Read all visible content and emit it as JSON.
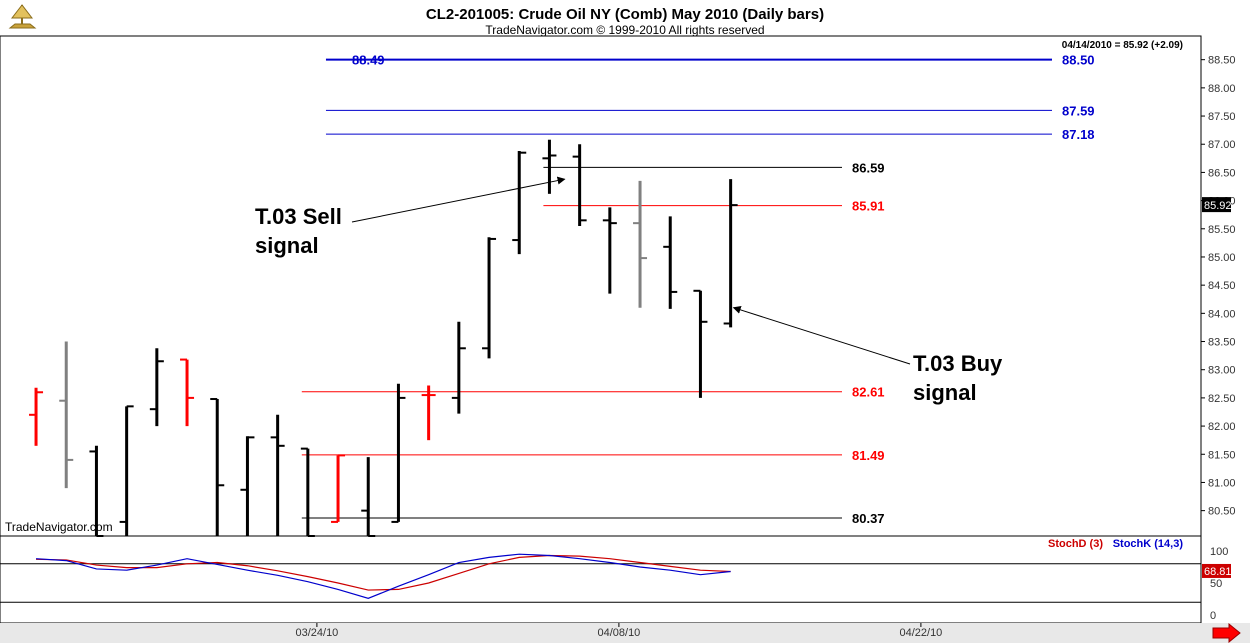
{
  "header": {
    "title": "CL2-201005:  Crude Oil NY (Comb) May 2010  (Daily bars)",
    "subtitle": "TradeNavigator.com © 1999-2010 All rights reserved",
    "last_price_note": "04/14/2010 = 85.92 (+2.09)",
    "watermark": "TradeNavigator.com"
  },
  "colors": {
    "bar_black": "#000000",
    "bar_red": "#ff0000",
    "bar_gray": "#808080",
    "level_blue": "#0000cc",
    "level_red": "#ff0000",
    "level_black": "#000000",
    "stoch_d": "#cc0000",
    "stoch_k": "#0000cc",
    "axis_text": "#333333"
  },
  "chart_data": {
    "type": "ohlc",
    "y_axis": {
      "ticks": [
        "80.50",
        "81.00",
        "81.50",
        "82.00",
        "82.50",
        "83.00",
        "83.50",
        "84.00",
        "84.50",
        "85.00",
        "85.50",
        "86.00",
        "86.50",
        "87.00",
        "87.50",
        "88.00",
        "88.50"
      ],
      "ylim": [
        80.05,
        88.92
      ],
      "last_price_label": "85.92"
    },
    "x_axis": {
      "date_labels": [
        {
          "text": "03/24/10",
          "index": 9.5
        },
        {
          "text": "04/08/10",
          "index": 19.5
        },
        {
          "text": "04/22/10",
          "index": 29.5
        }
      ]
    },
    "bars": [
      {
        "i": 0.2,
        "o": 82.2,
        "h": 82.68,
        "l": 81.65,
        "c": 82.6,
        "color": "red"
      },
      {
        "i": 1.2,
        "o": 82.45,
        "h": 83.5,
        "l": 80.9,
        "c": 81.4,
        "color": "gray"
      },
      {
        "i": 2.2,
        "o": 81.55,
        "h": 81.65,
        "l": 80.0,
        "c": 80.0,
        "color": "black"
      },
      {
        "i": 3.2,
        "o": 80.3,
        "h": 82.35,
        "l": 80.0,
        "c": 82.35,
        "color": "black"
      },
      {
        "i": 4.2,
        "o": 82.3,
        "h": 83.38,
        "l": 82.0,
        "c": 83.15,
        "color": "black"
      },
      {
        "i": 5.2,
        "o": 83.18,
        "h": 83.18,
        "l": 82.0,
        "c": 82.5,
        "color": "red"
      },
      {
        "i": 6.2,
        "o": 82.48,
        "h": 82.48,
        "l": 80.0,
        "c": 80.95,
        "color": "black"
      },
      {
        "i": 7.2,
        "o": 80.87,
        "h": 81.82,
        "l": 80.0,
        "c": 81.8,
        "color": "black"
      },
      {
        "i": 8.2,
        "o": 81.8,
        "h": 82.2,
        "l": 80.0,
        "c": 81.65,
        "color": "black"
      },
      {
        "i": 9.2,
        "o": 81.6,
        "h": 81.6,
        "l": 80.0,
        "c": 80.0,
        "color": "black"
      },
      {
        "i": 10.2,
        "o": 80.3,
        "h": 81.48,
        "l": 80.3,
        "c": 81.48,
        "color": "red"
      },
      {
        "i": 11.2,
        "o": 80.5,
        "h": 81.45,
        "l": 80.05,
        "c": 80.05,
        "color": "black"
      },
      {
        "i": 12.2,
        "o": 80.3,
        "h": 82.75,
        "l": 80.3,
        "c": 82.5,
        "color": "black"
      },
      {
        "i": 13.2,
        "o": 82.55,
        "h": 82.72,
        "l": 81.75,
        "c": 82.55,
        "color": "red"
      },
      {
        "i": 14.2,
        "o": 82.5,
        "h": 83.85,
        "l": 82.22,
        "c": 83.38,
        "color": "black"
      },
      {
        "i": 15.2,
        "o": 83.38,
        "h": 85.35,
        "l": 83.2,
        "c": 85.32,
        "color": "black"
      },
      {
        "i": 16.2,
        "o": 85.3,
        "h": 86.88,
        "l": 85.05,
        "c": 86.85,
        "color": "black"
      },
      {
        "i": 17.2,
        "o": 86.75,
        "h": 87.08,
        "l": 86.12,
        "c": 86.8,
        "color": "black"
      },
      {
        "i": 18.2,
        "o": 86.78,
        "h": 87.0,
        "l": 85.55,
        "c": 85.65,
        "color": "black"
      },
      {
        "i": 19.2,
        "o": 85.65,
        "h": 85.88,
        "l": 84.35,
        "c": 85.6,
        "color": "black"
      },
      {
        "i": 20.2,
        "o": 85.6,
        "h": 86.35,
        "l": 84.1,
        "c": 84.98,
        "color": "gray"
      },
      {
        "i": 21.2,
        "o": 85.18,
        "h": 85.72,
        "l": 84.08,
        "c": 84.38,
        "color": "black"
      },
      {
        "i": 22.2,
        "o": 84.4,
        "h": 84.4,
        "l": 82.5,
        "c": 83.85,
        "color": "black"
      },
      {
        "i": 23.2,
        "o": 83.82,
        "h": 86.38,
        "l": 83.75,
        "c": 85.92,
        "color": "black"
      }
    ],
    "levels": [
      {
        "value": 88.5,
        "label": "88.50",
        "color": "blue",
        "from": 9.8,
        "thickness": 2
      },
      {
        "value": 87.6,
        "label": "87.59",
        "color": "blue",
        "from": 9.8,
        "thickness": 1
      },
      {
        "value": 87.18,
        "label": "87.18",
        "color": "blue",
        "from": 9.8,
        "thickness": 1
      },
      {
        "value": 86.59,
        "label": "86.59",
        "color": "black",
        "from": 17.0,
        "thickness": 1
      },
      {
        "value": 85.91,
        "label": "85.91",
        "color": "red",
        "from": 17.0,
        "thickness": 1
      },
      {
        "value": 82.61,
        "label": "82.61",
        "color": "red",
        "from": 9.0,
        "thickness": 1
      },
      {
        "value": 81.49,
        "label": "81.49",
        "color": "red",
        "from": 9.0,
        "thickness": 1
      },
      {
        "value": 80.37,
        "label": "80.37",
        "color": "black",
        "from": 9.0,
        "thickness": 1
      }
    ],
    "left_level_label": {
      "text": "88.49",
      "value": 88.5
    },
    "annotations": [
      {
        "lines": [
          "T.03 Sell",
          "signal"
        ],
        "arrow_to": {
          "i": 17.7,
          "v": 86.38
        }
      },
      {
        "lines": [
          "T.03 Buy",
          "signal"
        ],
        "arrow_to": {
          "i": 23.3,
          "v": 84.1
        }
      }
    ],
    "stochastic": {
      "legend_d": "StochD (3)",
      "legend_k": "StochK (14,3)",
      "ticks": [
        "100",
        "50",
        "0"
      ],
      "last_value_label": "68.81",
      "stoch_k": [
        88,
        85,
        72,
        70,
        78,
        88,
        79,
        70,
        62,
        52,
        40,
        26,
        45,
        63,
        82,
        90,
        95,
        93,
        88,
        82,
        75,
        70,
        63,
        68
      ],
      "stoch_d": [
        87,
        86,
        78,
        74,
        74,
        80,
        82,
        77,
        69,
        60,
        50,
        39,
        40,
        50,
        65,
        80,
        90,
        93,
        92,
        88,
        82,
        76,
        70,
        68
      ]
    }
  }
}
